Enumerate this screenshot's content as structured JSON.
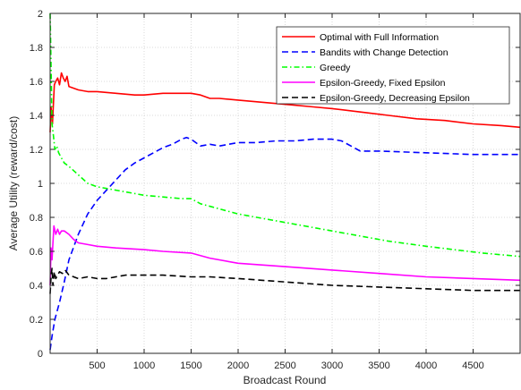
{
  "chart_data": {
    "type": "line",
    "xlabel": "Broadcast Round",
    "ylabel": "Average Utility (reward/cost)",
    "xlim": [
      0,
      5000
    ],
    "ylim": [
      0,
      2
    ],
    "xticks": [
      500,
      1000,
      1500,
      2000,
      2500,
      3000,
      3500,
      4000,
      4500
    ],
    "yticks": [
      0,
      0.2,
      0.4,
      0.6,
      0.8,
      1,
      1.2,
      1.4,
      1.6,
      1.8,
      2
    ],
    "grid": true,
    "legend_position": "top-right",
    "series": [
      {
        "name": "Optimal with Full Information",
        "color": "#ff0000",
        "style": "solid",
        "x": [
          0,
          10,
          25,
          45,
          60,
          80,
          100,
          120,
          140,
          160,
          180,
          200,
          250,
          300,
          400,
          500,
          700,
          900,
          1000,
          1200,
          1400,
          1500,
          1600,
          1700,
          1800,
          2000,
          2200,
          2400,
          2600,
          2800,
          3000,
          3300,
          3600,
          3900,
          4200,
          4500,
          4800,
          5000
        ],
        "y": [
          1.3,
          1.45,
          1.35,
          1.58,
          1.6,
          1.62,
          1.58,
          1.65,
          1.62,
          1.6,
          1.63,
          1.57,
          1.56,
          1.55,
          1.54,
          1.54,
          1.53,
          1.52,
          1.52,
          1.53,
          1.53,
          1.53,
          1.52,
          1.5,
          1.5,
          1.49,
          1.48,
          1.47,
          1.46,
          1.45,
          1.44,
          1.42,
          1.4,
          1.38,
          1.37,
          1.35,
          1.34,
          1.33
        ]
      },
      {
        "name": "Bandits with Change Detection",
        "color": "#0000ff",
        "style": "dashed",
        "x": [
          0,
          20,
          50,
          100,
          150,
          200,
          300,
          400,
          500,
          600,
          700,
          800,
          900,
          1000,
          1100,
          1200,
          1300,
          1400,
          1450,
          1500,
          1600,
          1700,
          1800,
          1900,
          2000,
          2200,
          2400,
          2600,
          2800,
          2900,
          3000,
          3100,
          3200,
          3300,
          3500,
          4000,
          4500,
          5000
        ],
        "y": [
          0.02,
          0.1,
          0.2,
          0.3,
          0.42,
          0.55,
          0.7,
          0.82,
          0.9,
          0.96,
          1.02,
          1.08,
          1.12,
          1.15,
          1.18,
          1.21,
          1.23,
          1.26,
          1.27,
          1.26,
          1.22,
          1.23,
          1.22,
          1.23,
          1.24,
          1.24,
          1.25,
          1.25,
          1.26,
          1.26,
          1.26,
          1.25,
          1.22,
          1.19,
          1.19,
          1.18,
          1.17,
          1.17
        ]
      },
      {
        "name": "Greedy",
        "color": "#00ff00",
        "style": "dashdot",
        "x": [
          0,
          10,
          20,
          35,
          50,
          70,
          90,
          110,
          150,
          200,
          300,
          400,
          500,
          700,
          900,
          1000,
          1200,
          1400,
          1500,
          1600,
          1800,
          2000,
          2200,
          2500,
          2800,
          3000,
          3300,
          3600,
          4000,
          4300,
          4600,
          5000
        ],
        "y": [
          2.0,
          1.7,
          1.35,
          1.28,
          1.2,
          1.22,
          1.18,
          1.16,
          1.12,
          1.1,
          1.05,
          1.0,
          0.98,
          0.96,
          0.94,
          0.93,
          0.92,
          0.91,
          0.91,
          0.88,
          0.85,
          0.82,
          0.8,
          0.77,
          0.74,
          0.72,
          0.69,
          0.66,
          0.63,
          0.61,
          0.59,
          0.57
        ]
      },
      {
        "name": "Epsilon-Greedy, Fixed Epsilon",
        "color": "#ff00ff",
        "style": "solid",
        "x": [
          0,
          10,
          20,
          40,
          60,
          80,
          100,
          120,
          150,
          200,
          250,
          300,
          400,
          500,
          700,
          1000,
          1200,
          1500,
          1700,
          2000,
          2500,
          3000,
          3500,
          4000,
          4500,
          5000
        ],
        "y": [
          0.4,
          0.62,
          0.55,
          0.75,
          0.7,
          0.73,
          0.7,
          0.72,
          0.72,
          0.7,
          0.67,
          0.65,
          0.64,
          0.63,
          0.62,
          0.61,
          0.6,
          0.59,
          0.56,
          0.53,
          0.51,
          0.49,
          0.47,
          0.45,
          0.44,
          0.43
        ]
      },
      {
        "name": "Epsilon-Greedy, Decreasing Epsilon",
        "color": "#000000",
        "style": "dashed",
        "x": [
          0,
          10,
          20,
          30,
          45,
          60,
          80,
          100,
          130,
          160,
          200,
          250,
          300,
          400,
          500,
          600,
          800,
          1000,
          1200,
          1500,
          1700,
          2000,
          2500,
          3000,
          3500,
          4000,
          4500,
          5000
        ],
        "y": [
          0.35,
          0.45,
          0.5,
          0.4,
          0.48,
          0.44,
          0.46,
          0.48,
          0.47,
          0.49,
          0.46,
          0.45,
          0.44,
          0.45,
          0.44,
          0.44,
          0.46,
          0.46,
          0.46,
          0.45,
          0.45,
          0.44,
          0.42,
          0.4,
          0.39,
          0.38,
          0.37,
          0.37
        ]
      }
    ]
  }
}
